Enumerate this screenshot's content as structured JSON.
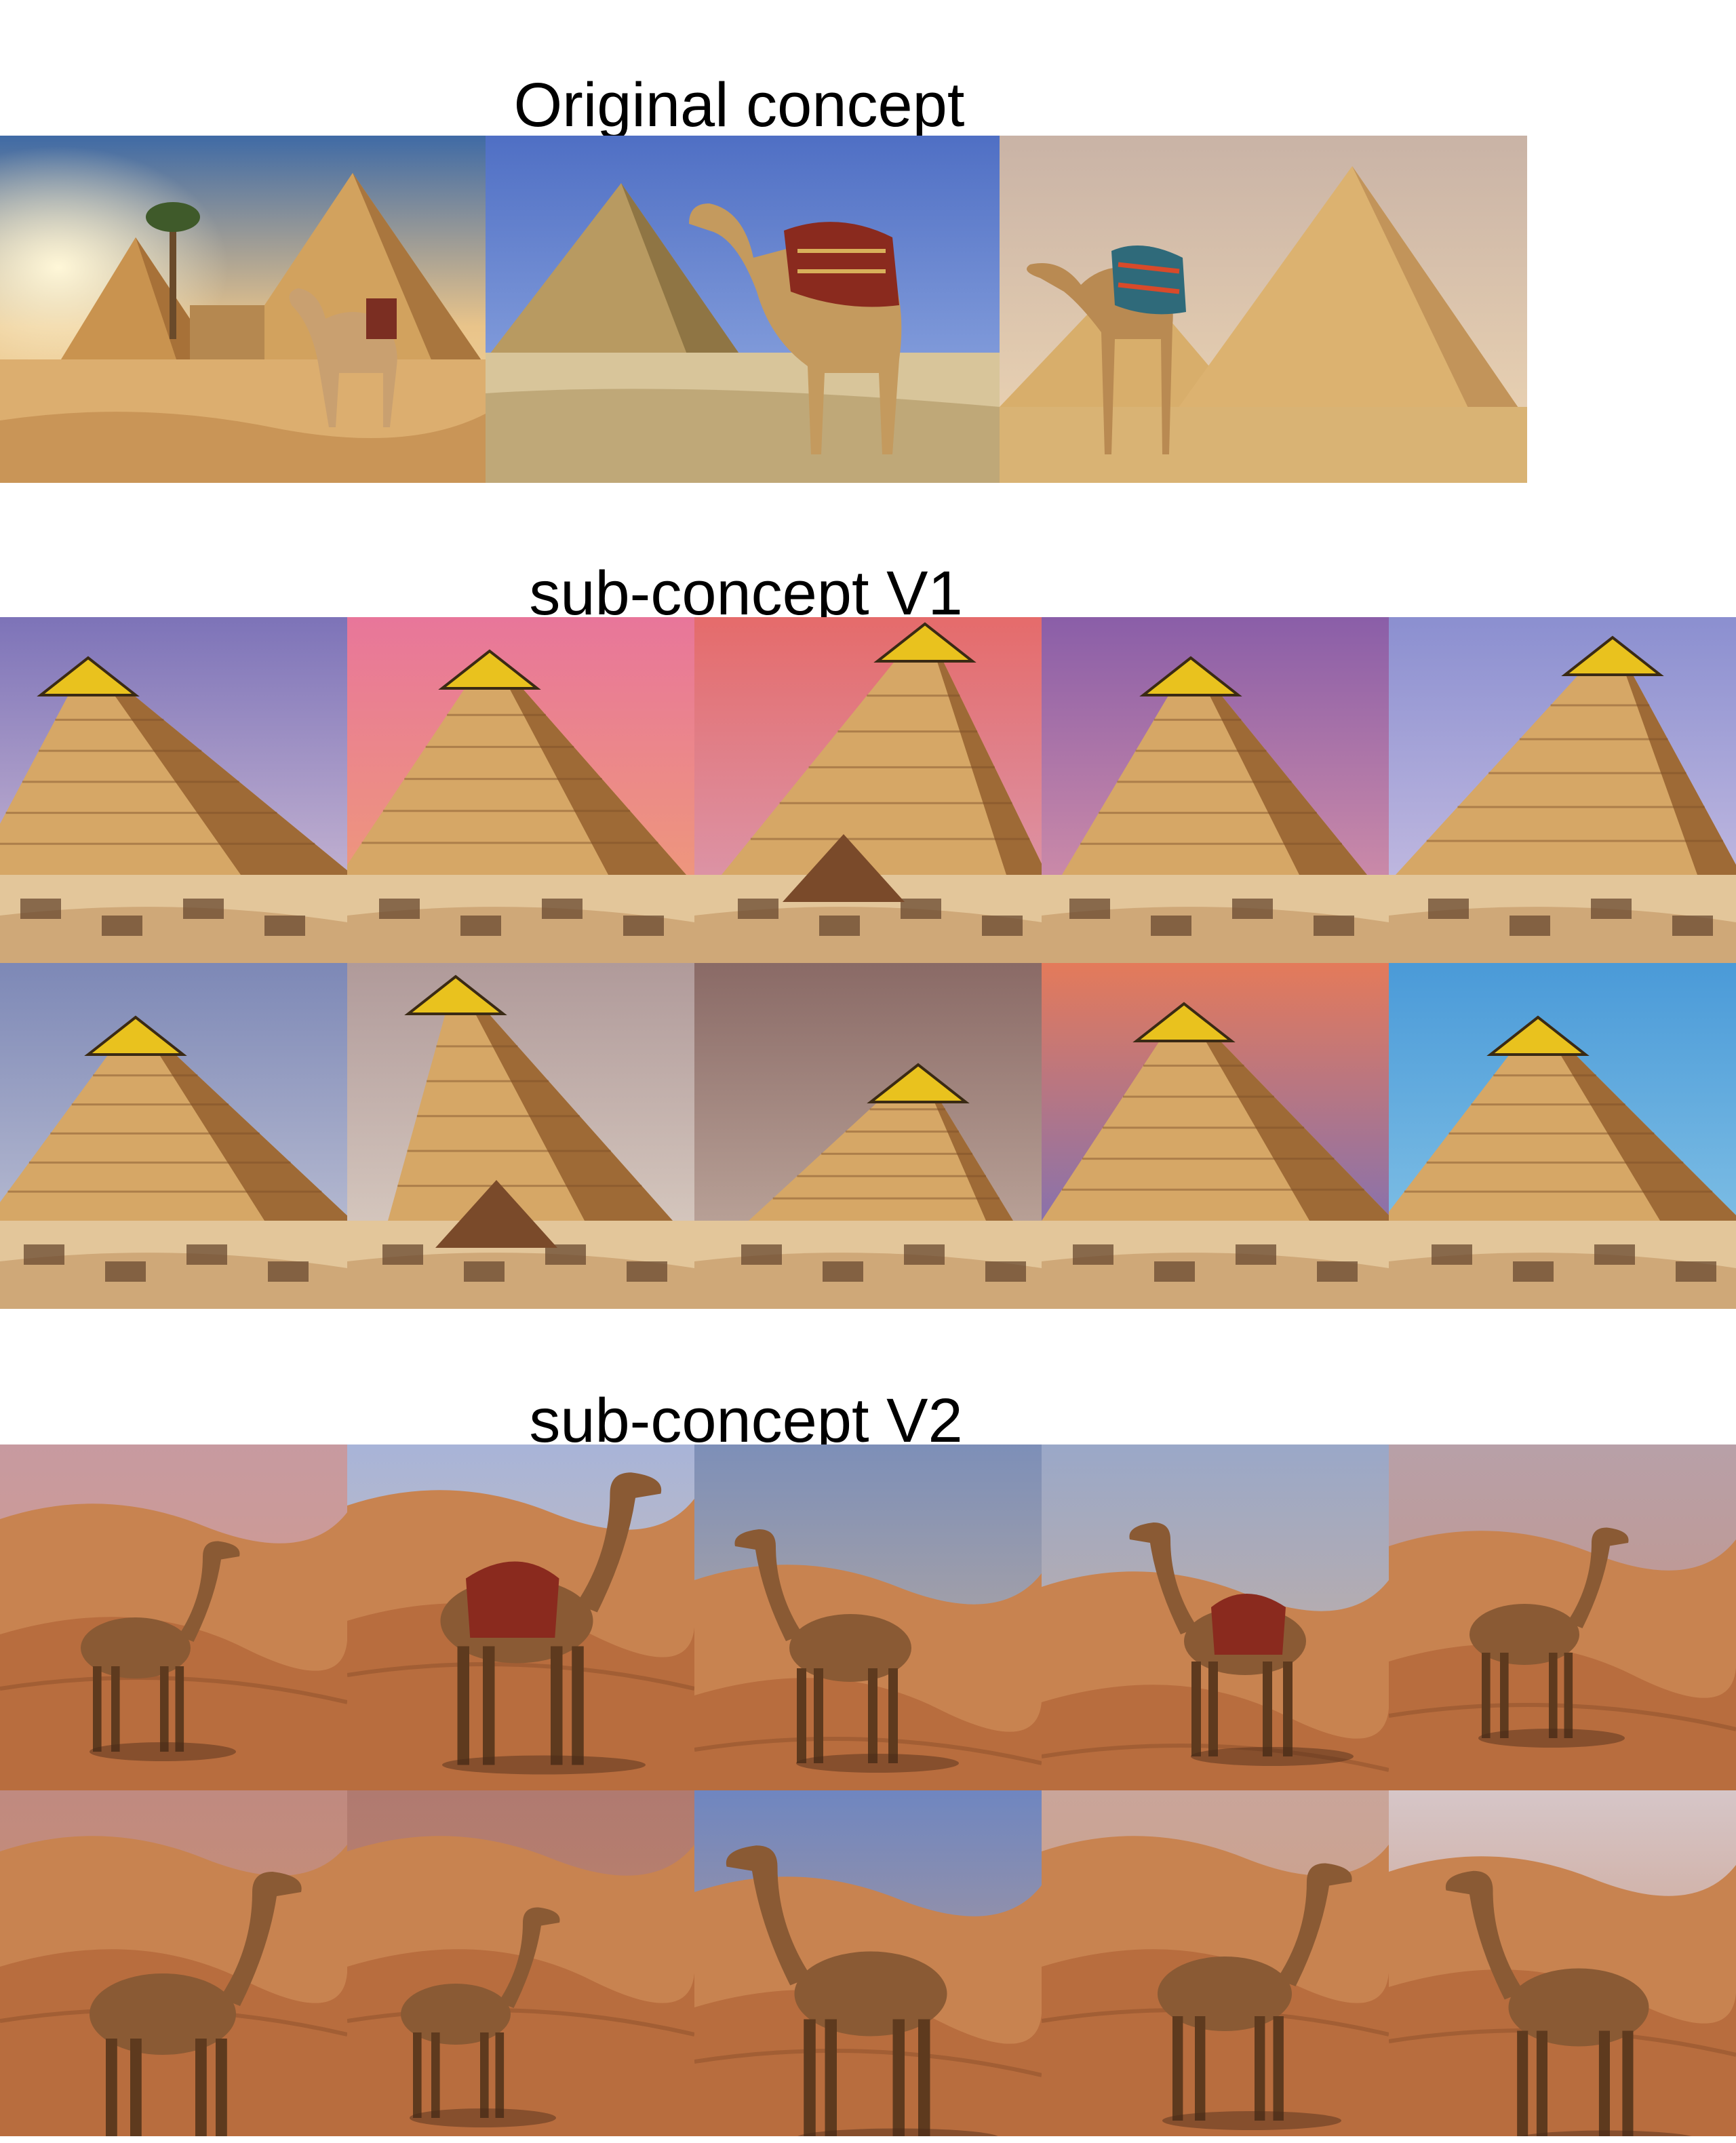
{
  "sections": {
    "original": {
      "title": "Original concept"
    },
    "v1": {
      "title": "sub-concept V1"
    },
    "v2": {
      "title": "sub-concept V2"
    }
  },
  "palette": {
    "sand": "#d9a865",
    "sand_dark": "#b7793f",
    "pyramid_light": "#d6a766",
    "pyramid_shadow": "#9e6a36",
    "cap_gold": "#e9c21e",
    "camel": "#8a5a34",
    "sky_blue": "#5d77c4",
    "sky_purple": "#7f6fb3",
    "sky_pink": "#e27a86",
    "dune": "#c88350",
    "dune_shadow": "#8c4f2a"
  },
  "images": {
    "original": [
      "pyramid-camel-sunset-photo",
      "pyramid-camel-saddle-photo",
      "camel-twin-pyramids-photo"
    ],
    "v1": [
      "pyramid-gen-1",
      "pyramid-gen-2",
      "pyramid-gen-3",
      "pyramid-gen-4",
      "pyramid-gen-5",
      "pyramid-gen-6",
      "pyramid-gen-7",
      "pyramid-gen-8",
      "pyramid-gen-9",
      "pyramid-gen-10"
    ],
    "v2": [
      "camel-gen-1",
      "camel-gen-2",
      "camel-gen-3",
      "camel-gen-4",
      "camel-gen-5",
      "camel-gen-6",
      "camel-gen-7",
      "camel-gen-8",
      "camel-gen-9",
      "camel-gen-10"
    ]
  }
}
